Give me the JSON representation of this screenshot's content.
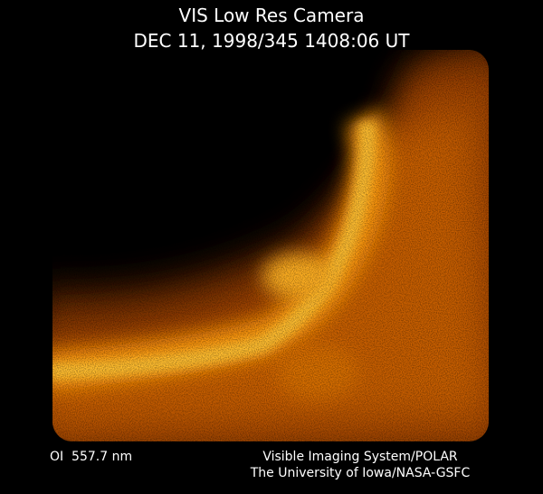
{
  "header": {
    "title": "VIS Low Res Camera",
    "subtitle": "DEC 11, 1998/345 1408:06 UT"
  },
  "footer": {
    "filter": "OI  557.7 nm",
    "credit_1": "Visible Imaging System/POLAR",
    "credit_2": "The University of Iowa/NASA-GSFC"
  }
}
